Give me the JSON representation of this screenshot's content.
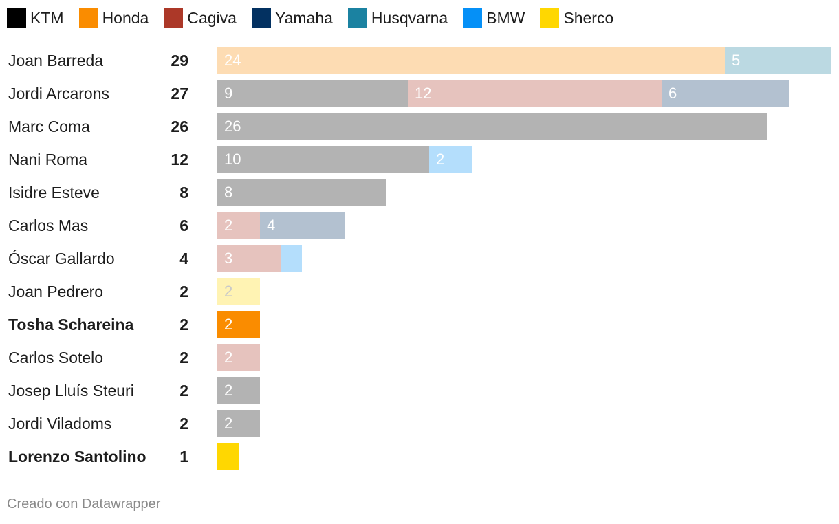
{
  "legend": [
    {
      "name": "KTM",
      "color": "#000000"
    },
    {
      "name": "Honda",
      "color": "#fa8c00"
    },
    {
      "name": "Cagiva",
      "color": "#ac3828"
    },
    {
      "name": "Yamaha",
      "color": "#033161"
    },
    {
      "name": "Husqvarna",
      "color": "#1b82a1"
    },
    {
      "name": "BMW",
      "color": "#0590f7"
    },
    {
      "name": "Sherco",
      "color": "#ffd701"
    }
  ],
  "chart_data": {
    "type": "bar",
    "orientation": "horizontal",
    "stacked": true,
    "scale_max": 29,
    "rows": [
      {
        "rider": "Joan Barreda",
        "total": "29",
        "bold": false,
        "segments": [
          {
            "make": "Honda",
            "value": 24,
            "label": "24",
            "color": "#fddcb3"
          },
          {
            "make": "Husqvarna",
            "value": 5,
            "label": "5",
            "color": "#bbd9e2"
          }
        ]
      },
      {
        "rider": "Jordi Arcarons",
        "total": "27",
        "bold": false,
        "segments": [
          {
            "make": "KTM",
            "value": 9,
            "label": "9",
            "color": "#b3b3b3"
          },
          {
            "make": "Cagiva",
            "value": 12,
            "label": "12",
            "color": "#e6c3be"
          },
          {
            "make": "Yamaha",
            "value": 6,
            "label": "6",
            "color": "#b3c1d0"
          }
        ]
      },
      {
        "rider": "Marc Coma",
        "total": "26",
        "bold": false,
        "segments": [
          {
            "make": "KTM",
            "value": 26,
            "label": "26",
            "color": "#b3b3b3"
          }
        ]
      },
      {
        "rider": "Nani Roma",
        "total": "12",
        "bold": false,
        "segments": [
          {
            "make": "KTM",
            "value": 10,
            "label": "10",
            "color": "#b3b3b3"
          },
          {
            "make": "BMW",
            "value": 2,
            "label": "2",
            "color": "#b4defc"
          }
        ]
      },
      {
        "rider": "Isidre Esteve",
        "total": "8",
        "bold": false,
        "segments": [
          {
            "make": "KTM",
            "value": 8,
            "label": "8",
            "color": "#b3b3b3"
          }
        ]
      },
      {
        "rider": "Carlos Mas",
        "total": "6",
        "bold": false,
        "segments": [
          {
            "make": "Cagiva",
            "value": 2,
            "label": "2",
            "color": "#e6c3be"
          },
          {
            "make": "Yamaha",
            "value": 4,
            "label": "4",
            "color": "#b3c1d0"
          }
        ]
      },
      {
        "rider": "Óscar Gallardo",
        "total": "4",
        "bold": false,
        "segments": [
          {
            "make": "Cagiva",
            "value": 3,
            "label": "3",
            "color": "#e6c3be"
          },
          {
            "make": "BMW",
            "value": 1,
            "label": "",
            "color": "#b4defc"
          }
        ]
      },
      {
        "rider": "Joan Pedrero",
        "total": "2",
        "bold": false,
        "segments": [
          {
            "make": "Sherco",
            "value": 2,
            "label": "2",
            "color": "#fff3b3",
            "label_color": "#c9c9c9"
          }
        ]
      },
      {
        "rider": "Tosha Schareina",
        "total": "2",
        "bold": true,
        "segments": [
          {
            "make": "Honda",
            "value": 2,
            "label": "2",
            "color": "#fa8c00"
          }
        ]
      },
      {
        "rider": "Carlos Sotelo",
        "total": "2",
        "bold": false,
        "segments": [
          {
            "make": "Cagiva",
            "value": 2,
            "label": "2",
            "color": "#e6c3be"
          }
        ]
      },
      {
        "rider": "Josep Lluís Steuri",
        "total": "2",
        "bold": false,
        "segments": [
          {
            "make": "KTM",
            "value": 2,
            "label": "2",
            "color": "#b3b3b3"
          }
        ]
      },
      {
        "rider": "Jordi Viladoms",
        "total": "2",
        "bold": false,
        "segments": [
          {
            "make": "KTM",
            "value": 2,
            "label": "2",
            "color": "#b3b3b3"
          }
        ]
      },
      {
        "rider": "Lorenzo Santolino",
        "total": "1",
        "bold": true,
        "segments": [
          {
            "make": "Sherco",
            "value": 1,
            "label": "",
            "color": "#ffd701"
          }
        ]
      }
    ]
  },
  "footer": {
    "credit": "Creado con Datawrapper"
  }
}
